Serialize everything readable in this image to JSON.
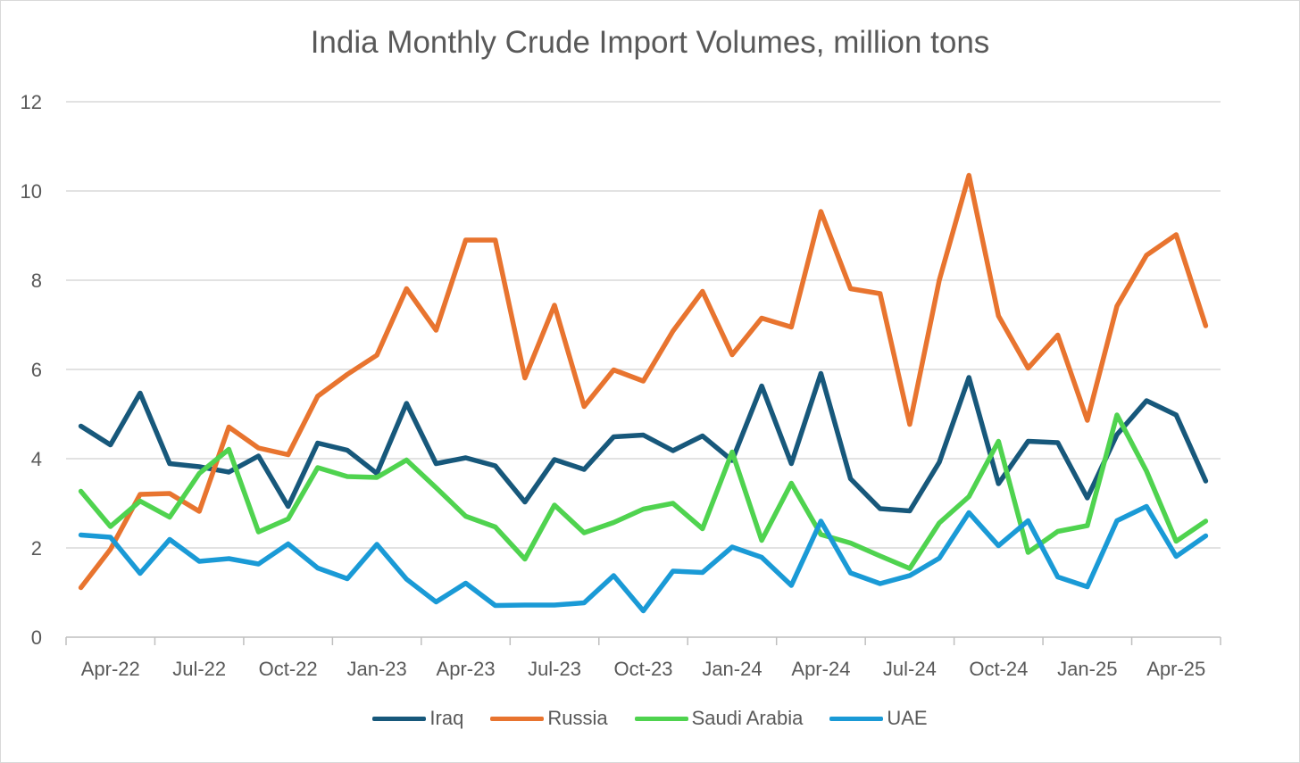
{
  "chart_data": {
    "type": "line",
    "title": "India Monthly Crude Import Volumes, million tons",
    "xlabel": "",
    "ylabel": "",
    "ylim": [
      0,
      12
    ],
    "yticks": [
      0,
      2,
      4,
      6,
      8,
      10,
      12
    ],
    "grid": true,
    "legend_position": "bottom",
    "x": [
      "Mar-22",
      "Apr-22",
      "May-22",
      "Jun-22",
      "Jul-22",
      "Aug-22",
      "Sep-22",
      "Oct-22",
      "Nov-22",
      "Dec-22",
      "Jan-23",
      "Feb-23",
      "Mar-23",
      "Apr-23",
      "May-23",
      "Jun-23",
      "Jul-23",
      "Aug-23",
      "Sep-23",
      "Oct-23",
      "Nov-23",
      "Dec-23",
      "Jan-24",
      "Feb-24",
      "Mar-24",
      "Apr-24",
      "May-24",
      "Jun-24",
      "Jul-24",
      "Aug-24",
      "Sep-24",
      "Oct-24",
      "Nov-24",
      "Dec-24",
      "Jan-25",
      "Feb-25",
      "Mar-25",
      "Apr-25",
      "May-25"
    ],
    "x_tick_labels": [
      "Apr-22",
      "Jul-22",
      "Oct-22",
      "Jan-23",
      "Apr-23",
      "Jul-23",
      "Oct-23",
      "Jan-24",
      "Apr-24",
      "Jul-24",
      "Oct-24",
      "Jan-25",
      "Apr-25"
    ],
    "series": [
      {
        "name": "Iraq",
        "color": "#17587b",
        "values": [
          4.73,
          4.31,
          5.47,
          3.89,
          3.82,
          3.7,
          4.06,
          2.93,
          4.35,
          4.19,
          3.67,
          5.24,
          3.89,
          4.02,
          3.84,
          3.03,
          3.98,
          3.76,
          4.49,
          4.53,
          4.18,
          4.51,
          3.96,
          5.63,
          3.89,
          5.91,
          3.55,
          2.88,
          2.83,
          3.92,
          5.82,
          3.44,
          4.39,
          4.36,
          3.12,
          4.54,
          5.3,
          4.98,
          3.5
        ]
      },
      {
        "name": "Russia",
        "color": "#e8742f",
        "values": [
          1.11,
          1.97,
          3.2,
          3.22,
          2.82,
          4.71,
          4.24,
          4.09,
          5.4,
          5.89,
          6.32,
          7.81,
          6.88,
          8.9,
          8.9,
          5.81,
          7.44,
          5.17,
          5.99,
          5.74,
          6.86,
          7.75,
          6.33,
          7.15,
          6.95,
          9.54,
          7.81,
          7.7,
          4.77,
          8.0,
          10.35,
          7.2,
          6.03,
          6.77,
          4.86,
          7.42,
          8.56,
          9.02,
          6.98
        ]
      },
      {
        "name": "Saudi Arabia",
        "color": "#4fd34f",
        "values": [
          3.27,
          2.48,
          3.05,
          2.69,
          3.67,
          4.21,
          2.36,
          2.65,
          3.8,
          3.6,
          3.58,
          3.97,
          3.35,
          2.71,
          2.47,
          1.75,
          2.96,
          2.34,
          2.57,
          2.87,
          3.0,
          2.43,
          4.15,
          2.17,
          3.45,
          2.3,
          2.11,
          1.82,
          1.54,
          2.56,
          3.15,
          4.39,
          1.9,
          2.37,
          2.5,
          4.98,
          3.72,
          2.15,
          2.6
        ]
      },
      {
        "name": "UAE",
        "color": "#1a9ad6",
        "values": [
          2.29,
          2.24,
          1.43,
          2.19,
          1.7,
          1.76,
          1.64,
          2.09,
          1.55,
          1.31,
          2.08,
          1.3,
          0.79,
          1.21,
          0.71,
          0.72,
          0.72,
          0.77,
          1.38,
          0.59,
          1.48,
          1.45,
          2.02,
          1.79,
          1.16,
          2.6,
          1.44,
          1.2,
          1.38,
          1.77,
          2.79,
          2.05,
          2.61,
          1.35,
          1.13,
          2.61,
          2.93,
          1.81,
          2.27
        ]
      }
    ]
  }
}
